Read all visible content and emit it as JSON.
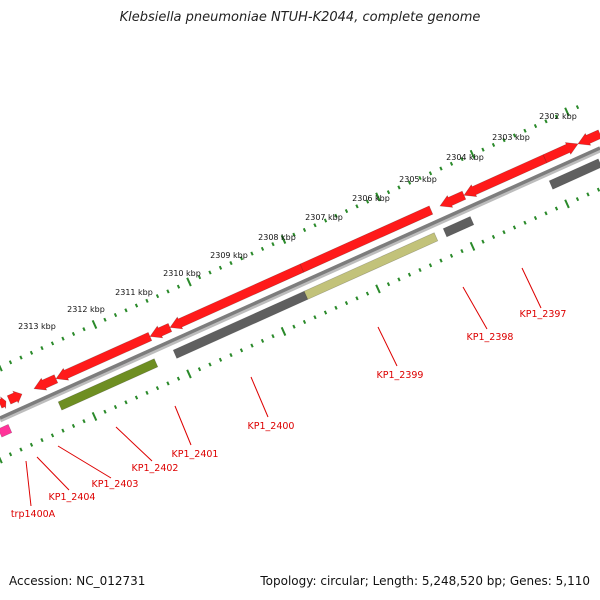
{
  "title": "Klebsiella pneumoniae NTUH-K2044, complete genome",
  "footer": {
    "accession": "Accession: NC_012731",
    "summary": "Topology: circular; Length: 5,248,520 bp; Genes: 5,110"
  },
  "colors": {
    "forward_gene": "#ff1a1a",
    "reverse_gene": "#5f5f5f",
    "olive_gene": "#6e8e22",
    "khaki_gene": "#c2c27a",
    "rna_gene": "#ff3399",
    "backbone": "#7d7d7d",
    "ticks": "#2a8a2a",
    "labels": "#dd0000"
  },
  "scale_labels": [
    "2302 kbp",
    "2303 kbp",
    "2304 kbp",
    "2305 kbp",
    "2306 kbp",
    "2307 kbp",
    "2308 kbp",
    "2309 kbp",
    "2310 kbp",
    "2311 kbp",
    "2312 kbp",
    "2313 kbp"
  ],
  "gene_labels": [
    "KP1_2397",
    "KP1_2398",
    "KP1_2399",
    "KP1_2400",
    "KP1_2401",
    "KP1_2402",
    "KP1_2403",
    "KP1_2404",
    "trp1400A"
  ]
}
